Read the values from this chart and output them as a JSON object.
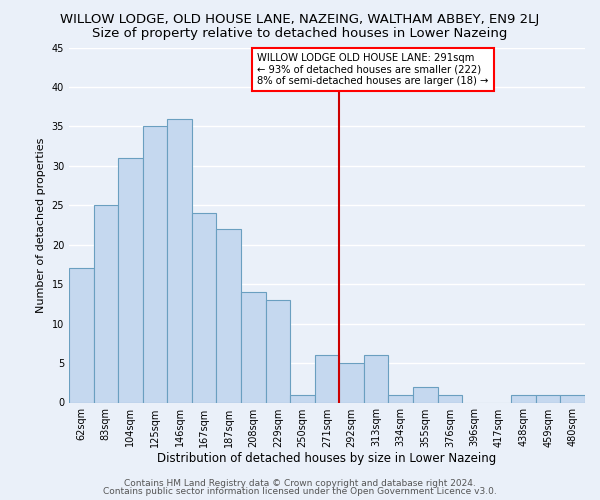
{
  "title": "WILLOW LODGE, OLD HOUSE LANE, NAZEING, WALTHAM ABBEY, EN9 2LJ",
  "subtitle": "Size of property relative to detached houses in Lower Nazeing",
  "xlabel": "Distribution of detached houses by size in Lower Nazeing",
  "ylabel": "Number of detached properties",
  "categories": [
    "62sqm",
    "83sqm",
    "104sqm",
    "125sqm",
    "146sqm",
    "167sqm",
    "187sqm",
    "208sqm",
    "229sqm",
    "250sqm",
    "271sqm",
    "292sqm",
    "313sqm",
    "334sqm",
    "355sqm",
    "376sqm",
    "396sqm",
    "417sqm",
    "438sqm",
    "459sqm",
    "480sqm"
  ],
  "values": [
    17,
    25,
    31,
    35,
    36,
    24,
    22,
    14,
    13,
    1,
    6,
    5,
    6,
    1,
    2,
    1,
    0,
    0,
    1,
    1,
    1
  ],
  "bar_color": "#c5d8ef",
  "bar_edge_color": "#6a9fc0",
  "vline_color": "#cc0000",
  "annotation_title": "WILLOW LODGE OLD HOUSE LANE: 291sqm",
  "annotation_line1": "← 93% of detached houses are smaller (222)",
  "annotation_line2": "8% of semi-detached houses are larger (18) →",
  "annotation_box_color": "white",
  "annotation_edge_color": "red",
  "ylim": [
    0,
    45
  ],
  "yticks": [
    0,
    5,
    10,
    15,
    20,
    25,
    30,
    35,
    40,
    45
  ],
  "background_color": "#eaf0f9",
  "grid_color": "#ffffff",
  "footer1": "Contains HM Land Registry data © Crown copyright and database right 2024.",
  "footer2": "Contains public sector information licensed under the Open Government Licence v3.0.",
  "title_fontsize": 9.5,
  "subtitle_fontsize": 9.5,
  "xlabel_fontsize": 8.5,
  "ylabel_fontsize": 8,
  "tick_fontsize": 7,
  "footer_fontsize": 6.5
}
